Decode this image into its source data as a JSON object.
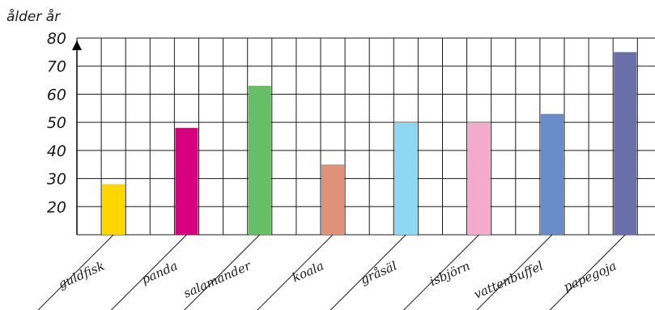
{
  "chart_data": {
    "type": "bar",
    "ylabel": "ålder år",
    "xlabel": "",
    "title": "",
    "ylim": [
      10,
      80
    ],
    "yticks": [
      20,
      30,
      40,
      50,
      60,
      70,
      80
    ],
    "grid": true,
    "categories": [
      "guldfisk",
      "panda",
      "salamander",
      "koala",
      "gråsäl",
      "isbjörn",
      "vattenbuffel",
      "papegoja"
    ],
    "values": [
      28,
      48,
      63,
      35,
      50,
      50,
      53,
      75
    ],
    "colors": [
      "#ffd700",
      "#d6007e",
      "#66bf66",
      "#e0917a",
      "#8fd8f2",
      "#f2aacd",
      "#6a8cc8",
      "#6a6fa9"
    ]
  }
}
